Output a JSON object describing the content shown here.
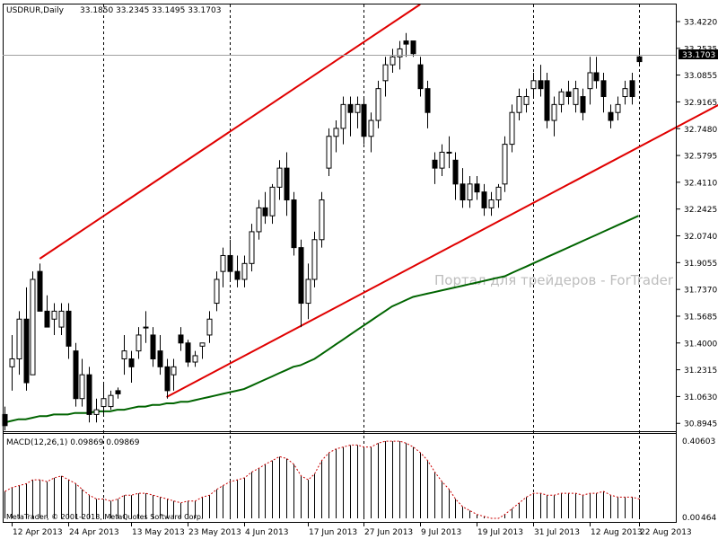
{
  "header": {
    "symbol": "USDRUR,Daily",
    "ohlc": "33.1850 33.2345 33.1495 33.1703"
  },
  "current_price_label": "33.1703",
  "watermark": "Портал для трейдеров - ForTrader",
  "macd": {
    "label": "MACD(12,26,1) 0.09869 0.09869",
    "max_label": "0.40603",
    "min_label": "0.00",
    "min_label_suffix": "464"
  },
  "copyright": "MetaTrader, © 2001-2013, MetaQuotes Software Corp.",
  "colors": {
    "up_candle": "#ffffff",
    "down_candle": "#000000",
    "channel": "#e00000",
    "moving_average": "#006400",
    "signal": "#cc0000"
  },
  "chart_data": {
    "type": "candlestick",
    "price_axis_ticks": [
      "33.4220",
      "33.2535",
      "33.0855",
      "32.9165",
      "32.7480",
      "32.5795",
      "32.4110",
      "32.2425",
      "32.0740",
      "31.9055",
      "31.7370",
      "31.5685",
      "31.4000",
      "31.2315",
      "31.0630",
      "30.8945"
    ],
    "price_range": [
      30.845,
      33.535
    ],
    "date_labels": [
      "12 Apr 2013",
      "24 Apr 2013",
      "13 May 2013",
      "23 May 2013",
      "4 Jun 2013",
      "17 Jun 2013",
      "27 Jun 2013",
      "9 Jul 2013",
      "19 Jul 2013",
      "31 Jul 2013",
      "12 Aug 2013",
      "22 Aug 2013"
    ],
    "date_label_bar_index": [
      1,
      9,
      18,
      26,
      34,
      43,
      51,
      59,
      67,
      75,
      83,
      90
    ],
    "period_separators_bar_index": [
      14,
      32,
      51,
      75,
      90
    ],
    "candles": [
      [
        30.95,
        31.0,
        30.85,
        30.88
      ],
      [
        31.25,
        31.45,
        31.1,
        31.3
      ],
      [
        31.3,
        31.6,
        31.2,
        31.55
      ],
      [
        31.55,
        31.75,
        31.1,
        31.15
      ],
      [
        31.2,
        31.85,
        31.2,
        31.8
      ],
      [
        31.85,
        31.9,
        31.6,
        31.6
      ],
      [
        31.6,
        31.7,
        31.5,
        31.5
      ],
      [
        31.55,
        31.65,
        31.45,
        31.6
      ],
      [
        31.5,
        31.65,
        31.45,
        31.6
      ],
      [
        31.6,
        31.65,
        31.3,
        31.38
      ],
      [
        31.35,
        31.4,
        31.0,
        31.05
      ],
      [
        31.05,
        31.3,
        31.0,
        31.2
      ],
      [
        31.2,
        31.25,
        30.9,
        30.95
      ],
      [
        30.95,
        31.05,
        30.9,
        30.98
      ],
      [
        31.0,
        31.15,
        30.95,
        31.05
      ],
      [
        31.0,
        31.1,
        30.98,
        31.07
      ],
      [
        31.1,
        31.12,
        31.05,
        31.08
      ],
      [
        31.3,
        31.45,
        31.2,
        31.35
      ],
      [
        31.3,
        31.35,
        31.15,
        31.25
      ],
      [
        31.35,
        31.5,
        31.3,
        31.45
      ],
      [
        31.5,
        31.6,
        31.4,
        31.5
      ],
      [
        31.45,
        31.5,
        31.25,
        31.3
      ],
      [
        31.35,
        31.45,
        31.2,
        31.25
      ],
      [
        31.25,
        31.3,
        31.05,
        31.1
      ],
      [
        31.2,
        31.3,
        31.1,
        31.25
      ],
      [
        31.45,
        31.5,
        31.35,
        31.4
      ],
      [
        31.4,
        31.42,
        31.25,
        31.28
      ],
      [
        31.28,
        31.35,
        31.25,
        31.32
      ],
      [
        31.38,
        31.4,
        31.3,
        31.4
      ],
      [
        31.45,
        31.6,
        31.4,
        31.55
      ],
      [
        31.65,
        31.85,
        31.6,
        31.8
      ],
      [
        31.85,
        32.0,
        31.75,
        31.95
      ],
      [
        31.95,
        32.05,
        31.8,
        31.85
      ],
      [
        31.85,
        31.95,
        31.75,
        31.8
      ],
      [
        31.8,
        31.95,
        31.75,
        31.9
      ],
      [
        31.9,
        32.15,
        31.85,
        32.1
      ],
      [
        32.1,
        32.3,
        32.05,
        32.25
      ],
      [
        32.25,
        32.35,
        32.15,
        32.2
      ],
      [
        32.2,
        32.4,
        32.15,
        32.38
      ],
      [
        32.38,
        32.55,
        32.3,
        32.5
      ],
      [
        32.5,
        32.6,
        32.2,
        32.3
      ],
      [
        32.3,
        32.35,
        31.95,
        32.0
      ],
      [
        32.0,
        32.05,
        31.5,
        31.65
      ],
      [
        31.65,
        31.9,
        31.55,
        31.8
      ],
      [
        31.8,
        32.1,
        31.75,
        32.05
      ],
      [
        32.05,
        32.35,
        32.0,
        32.3
      ],
      [
        32.5,
        32.75,
        32.45,
        32.7
      ],
      [
        32.7,
        32.8,
        32.6,
        32.75
      ],
      [
        32.75,
        32.95,
        32.65,
        32.9
      ],
      [
        32.9,
        32.95,
        32.7,
        32.85
      ],
      [
        32.85,
        32.95,
        32.75,
        32.9
      ],
      [
        32.9,
        32.95,
        32.65,
        32.7
      ],
      [
        32.7,
        32.85,
        32.6,
        32.8
      ],
      [
        32.8,
        33.05,
        32.75,
        33.0
      ],
      [
        33.05,
        33.2,
        32.95,
        33.15
      ],
      [
        33.15,
        33.25,
        33.1,
        33.2
      ],
      [
        33.2,
        33.3,
        33.12,
        33.25
      ],
      [
        33.3,
        33.35,
        33.2,
        33.28
      ],
      [
        33.3,
        33.3,
        33.2,
        33.22
      ],
      [
        33.15,
        33.2,
        32.95,
        33.0
      ],
      [
        33.0,
        33.05,
        32.75,
        32.85
      ],
      [
        32.55,
        32.6,
        32.4,
        32.5
      ],
      [
        32.5,
        32.65,
        32.45,
        32.6
      ],
      [
        32.6,
        32.7,
        32.5,
        32.6
      ],
      [
        32.55,
        32.6,
        32.3,
        32.4
      ],
      [
        32.4,
        32.5,
        32.25,
        32.3
      ],
      [
        32.3,
        32.45,
        32.25,
        32.4
      ],
      [
        32.4,
        32.45,
        32.3,
        32.35
      ],
      [
        32.35,
        32.4,
        32.2,
        32.25
      ],
      [
        32.25,
        32.35,
        32.2,
        32.3
      ],
      [
        32.3,
        32.4,
        32.25,
        32.38
      ],
      [
        32.4,
        32.7,
        32.35,
        32.65
      ],
      [
        32.65,
        32.9,
        32.6,
        32.85
      ],
      [
        32.85,
        33.0,
        32.8,
        32.95
      ],
      [
        32.9,
        33.0,
        32.85,
        32.95
      ],
      [
        33.0,
        33.1,
        32.95,
        33.05
      ],
      [
        33.05,
        33.15,
        32.95,
        33.0
      ],
      [
        33.05,
        33.1,
        32.75,
        32.8
      ],
      [
        32.8,
        32.95,
        32.7,
        32.9
      ],
      [
        32.9,
        33.0,
        32.85,
        32.98
      ],
      [
        32.98,
        33.05,
        32.9,
        32.95
      ],
      [
        32.9,
        33.05,
        32.85,
        33.0
      ],
      [
        32.95,
        33.0,
        32.8,
        32.85
      ],
      [
        33.0,
        33.2,
        32.9,
        33.1
      ],
      [
        33.1,
        33.2,
        33.0,
        33.05
      ],
      [
        33.05,
        33.1,
        32.85,
        32.95
      ],
      [
        32.85,
        32.9,
        32.75,
        32.8
      ],
      [
        32.85,
        32.95,
        32.8,
        32.9
      ],
      [
        32.95,
        33.05,
        32.9,
        33.0
      ],
      [
        33.05,
        33.1,
        32.9,
        32.95
      ],
      [
        33.2,
        33.25,
        33.15,
        33.17
      ]
    ],
    "moving_average": [
      30.9,
      30.91,
      30.92,
      30.92,
      30.93,
      30.94,
      30.94,
      30.95,
      30.95,
      30.95,
      30.96,
      30.96,
      30.96,
      30.97,
      30.97,
      30.97,
      30.98,
      30.98,
      30.99,
      31.0,
      31.0,
      31.01,
      31.01,
      31.02,
      31.02,
      31.03,
      31.03,
      31.04,
      31.05,
      31.06,
      31.07,
      31.08,
      31.09,
      31.1,
      31.11,
      31.13,
      31.15,
      31.17,
      31.19,
      31.21,
      31.23,
      31.25,
      31.26,
      31.28,
      31.3,
      31.33,
      31.36,
      31.39,
      31.42,
      31.45,
      31.48,
      31.51,
      31.54,
      31.57,
      31.6,
      31.63,
      31.65,
      31.67,
      31.69,
      31.7,
      31.71,
      31.72,
      31.73,
      31.74,
      31.75,
      31.76,
      31.77,
      31.78,
      31.79,
      31.8,
      31.81,
      31.82,
      31.84,
      31.86,
      31.88,
      31.9,
      31.92,
      31.94,
      31.96,
      31.98,
      32.0,
      32.02,
      32.04,
      32.06,
      32.08,
      32.1,
      32.12,
      32.14,
      32.16,
      32.18,
      32.2
    ],
    "channel_lines": [
      {
        "from": [
          5,
          31.93
        ],
        "to": [
          59,
          33.53
        ]
      },
      {
        "from": [
          23,
          31.06
        ],
        "to": [
          104,
          32.96
        ]
      }
    ],
    "macd_histogram": [
      0.14,
      0.16,
      0.17,
      0.18,
      0.2,
      0.2,
      0.19,
      0.21,
      0.22,
      0.2,
      0.18,
      0.15,
      0.12,
      0.1,
      0.1,
      0.09,
      0.1,
      0.12,
      0.12,
      0.13,
      0.13,
      0.12,
      0.11,
      0.1,
      0.09,
      0.08,
      0.09,
      0.09,
      0.11,
      0.12,
      0.15,
      0.17,
      0.19,
      0.2,
      0.21,
      0.24,
      0.26,
      0.28,
      0.3,
      0.32,
      0.31,
      0.28,
      0.22,
      0.2,
      0.23,
      0.3,
      0.34,
      0.36,
      0.37,
      0.38,
      0.38,
      0.37,
      0.37,
      0.39,
      0.4,
      0.4,
      0.4,
      0.39,
      0.37,
      0.34,
      0.3,
      0.24,
      0.19,
      0.15,
      0.1,
      0.06,
      0.04,
      0.02,
      0.01,
      0.0,
      0.0,
      0.02,
      0.05,
      0.08,
      0.11,
      0.13,
      0.13,
      0.12,
      0.12,
      0.13,
      0.13,
      0.13,
      0.12,
      0.13,
      0.13,
      0.14,
      0.12,
      0.11,
      0.11,
      0.11,
      0.1
    ],
    "macd_range": [
      0.0,
      0.41
    ]
  }
}
